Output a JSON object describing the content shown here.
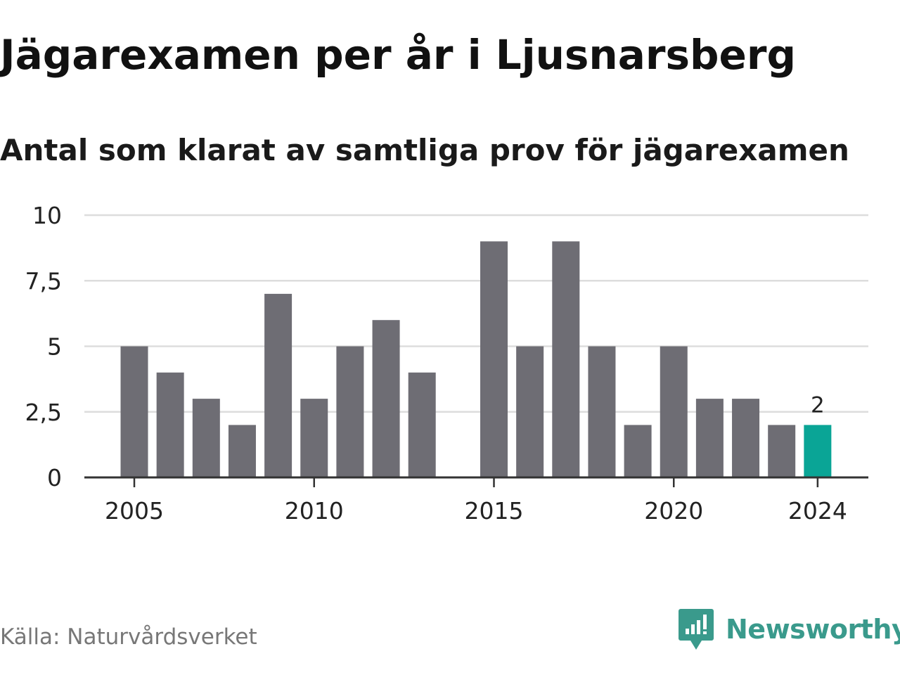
{
  "title": "Jägarexamen per år i Ljusnarsberg",
  "subtitle": "Antal som klarat av samtliga prov för jägarexamen",
  "source": "Källa: Naturvårdsverket",
  "brand": "Newsworthy",
  "colors": {
    "bar": "#6e6d74",
    "highlight": "#0aa596",
    "grid": "#dddddd",
    "axis": "#333333",
    "brand": "#3a9a8c"
  },
  "chart_data": {
    "type": "bar",
    "x": [
      2005,
      2006,
      2007,
      2008,
      2009,
      2010,
      2011,
      2012,
      2013,
      2014,
      2015,
      2016,
      2017,
      2018,
      2019,
      2020,
      2021,
      2022,
      2023,
      2024
    ],
    "values": [
      5,
      4,
      3,
      2,
      7,
      3,
      5,
      6,
      4,
      0,
      9,
      5,
      9,
      5,
      2,
      5,
      3,
      3,
      2,
      2
    ],
    "highlight_x": 2024,
    "highlight_label": "2",
    "ylim": [
      0,
      10
    ],
    "yticks": [
      0,
      2.5,
      5,
      7.5,
      10
    ],
    "ytick_labels": [
      "0",
      "2,5",
      "5",
      "7,5",
      "10"
    ],
    "xticks": [
      2005,
      2010,
      2015,
      2020,
      2024
    ],
    "xtick_labels": [
      "2005",
      "2010",
      "2015",
      "2020",
      "2024"
    ],
    "grid": true
  }
}
